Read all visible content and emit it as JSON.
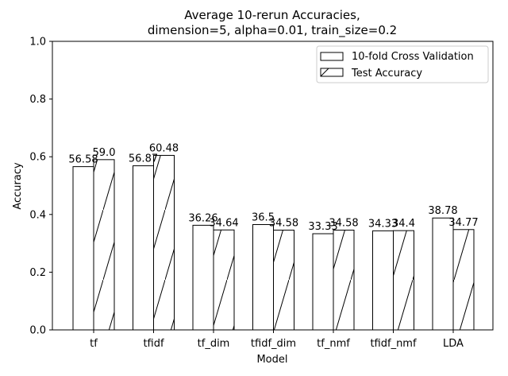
{
  "chart_data": {
    "type": "bar",
    "title_line1": "Average 10-rerun Accuracies,",
    "title_line2": "dimension=5, alpha=0.01, train_size=0.2",
    "xlabel": "Model",
    "ylabel": "Accuracy",
    "ylim": [
      0,
      1
    ],
    "yticks": [
      "0.0",
      "0.2",
      "0.4",
      "0.6",
      "0.8",
      "1.0"
    ],
    "categories": [
      "tf",
      "tfidf",
      "tf_dim",
      "tfidf_dim",
      "tf_nmf",
      "tfidf_nmf",
      "LDA"
    ],
    "series": [
      {
        "name": "10-fold Cross Validation",
        "values": [
          0.5658,
          0.5687,
          0.3626,
          0.365,
          0.3333,
          0.3433,
          0.3878
        ],
        "labels": [
          "56.58",
          "56.87",
          "36.26",
          "36.5",
          "33.33",
          "34.33",
          "38.78"
        ],
        "hatch": "none"
      },
      {
        "name": "Test Accuracy",
        "values": [
          0.59,
          0.6048,
          0.3464,
          0.3458,
          0.3458,
          0.344,
          0.3477
        ],
        "labels": [
          "59.0",
          "60.48",
          "34.64",
          "34.58",
          "34.58",
          "34.4",
          "34.77"
        ],
        "hatch": "diagonal"
      }
    ],
    "legend_position": "top-right",
    "grid": false,
    "colors": {
      "bar_fill": "#ffffff",
      "edge": "#000000"
    }
  }
}
